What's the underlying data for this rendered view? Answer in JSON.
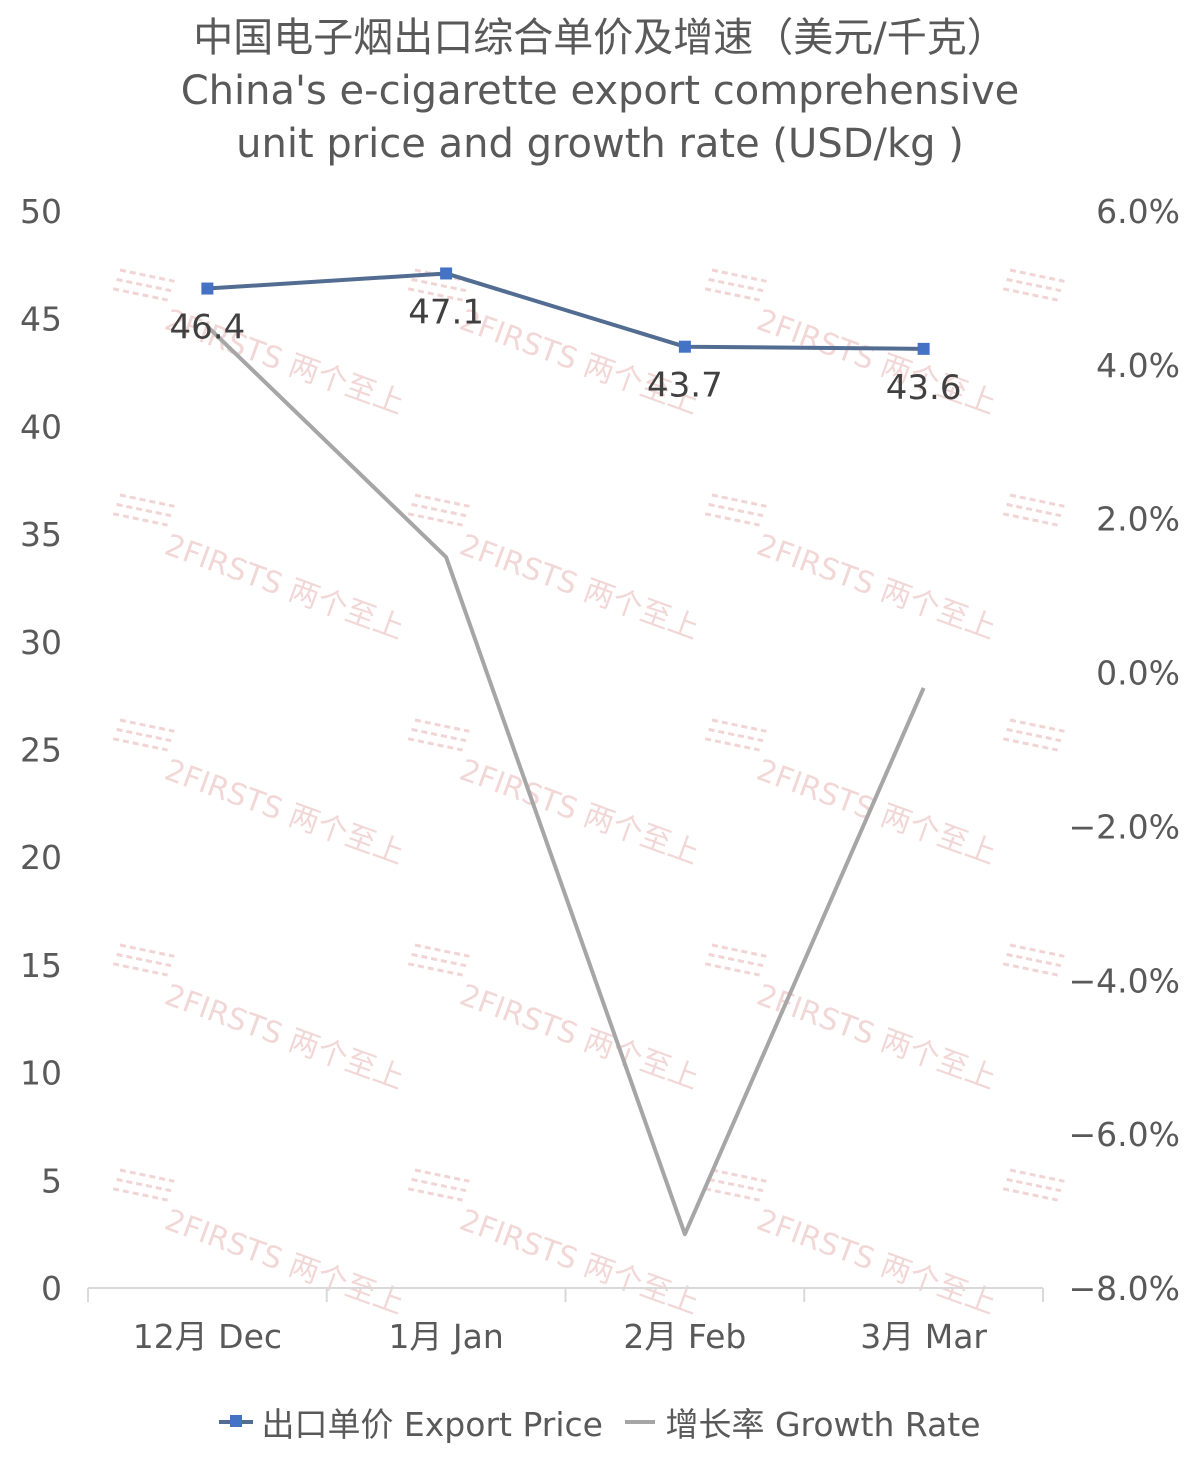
{
  "chart_data": {
    "type": "line",
    "title_lines": [
      "中国电子烟出口综合单价及增速（美元/千克）",
      "China's e-cigarette export comprehensive",
      "unit price and growth rate (USD/kg )"
    ],
    "categories": [
      "12月 Dec",
      "1月 Jan",
      "2月 Feb",
      "3月 Mar"
    ],
    "series": [
      {
        "name": "出口单价 Export Price",
        "axis": "left",
        "values": [
          46.4,
          47.1,
          43.7,
          43.6
        ],
        "data_labels": [
          "46.4",
          "47.1",
          "43.7",
          "43.6"
        ],
        "color": "#536d92",
        "marker_color": "#4472c4"
      },
      {
        "name": "增长率 Growth Rate",
        "axis": "right",
        "values": [
          4.5,
          1.5,
          -7.3,
          -0.2
        ],
        "color": "#a6a6a6"
      }
    ],
    "left_axis": {
      "ylim": [
        0,
        50
      ],
      "ticks": [
        "0",
        "5",
        "10",
        "15",
        "20",
        "25",
        "30",
        "35",
        "40",
        "45",
        "50"
      ]
    },
    "right_axis": {
      "ylim": [
        -8,
        6
      ],
      "ticks": [
        "−8.0%",
        "−6.0%",
        "−4.0%",
        "−2.0%",
        "0.0%",
        "2.0%",
        "4.0%",
        "6.0%"
      ]
    },
    "grid": false,
    "legend_position": "bottom"
  },
  "watermark": "2FIRSTS 两个至上"
}
